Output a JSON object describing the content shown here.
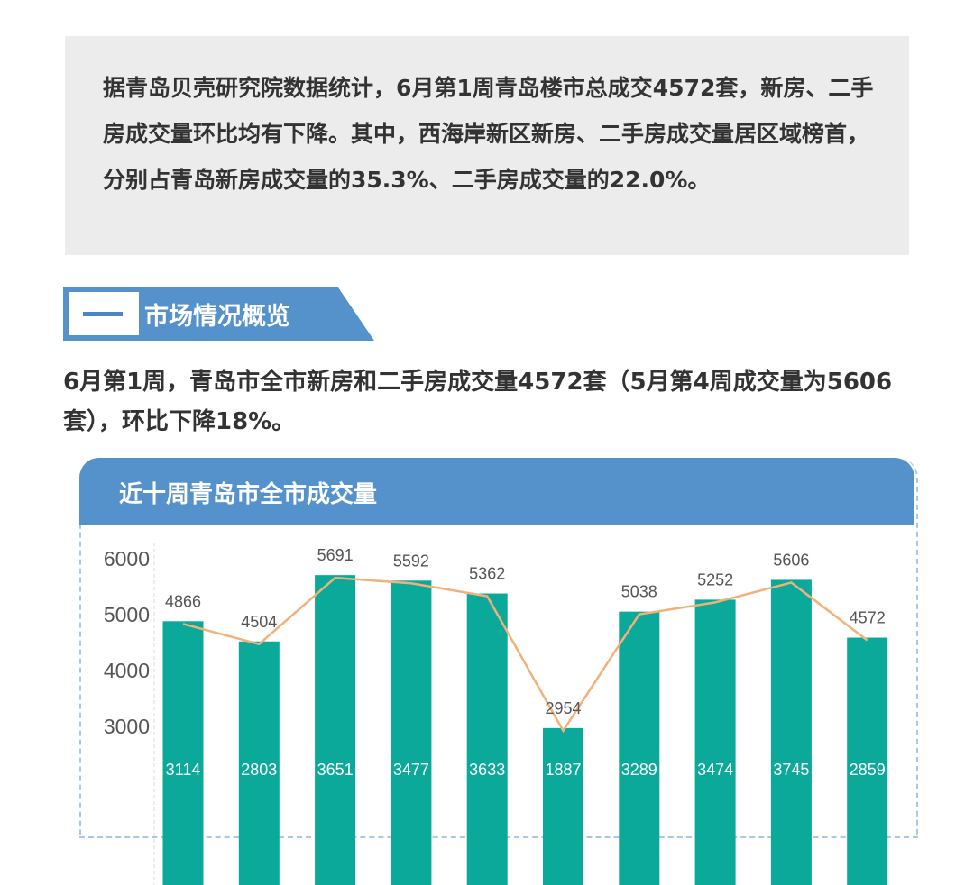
{
  "summary": "据青岛贝壳研究院数据统计，6月第1周青岛楼市总成交4572套，新房、二手房成交量环比均有下降。其中，西海岸新区新房、二手房成交量居区域榜首，分别占青岛新房成交量的35.3%、二手房成交量的22.0%。",
  "section": {
    "number": "一",
    "title": "市场情况概览"
  },
  "intro": "6月第1周，青岛市全市新房和二手房成交量4572套（5月第4周成交量为5606套），环比下降18%。",
  "colors": {
    "accent": "#5592cb",
    "bar": "#0aa99a",
    "line": "#f2b07a"
  },
  "chart_data": {
    "type": "bar",
    "title": "近十周青岛市全市成交量",
    "yticks": [
      3000,
      4000,
      5000,
      6000
    ],
    "ylim": [
      0,
      6000
    ],
    "series": [
      {
        "type": "bar",
        "values": [
          4866,
          4504,
          5691,
          5592,
          5362,
          2954,
          5038,
          5252,
          5606,
          4572
        ]
      },
      {
        "type": "line",
        "values": [
          4866,
          4504,
          5691,
          5592,
          5362,
          2954,
          5038,
          5252,
          5606,
          4572
        ]
      },
      {
        "type": "inner-label",
        "values": [
          3114,
          2803,
          3651,
          3477,
          3633,
          1887,
          3289,
          3474,
          3745,
          2859
        ]
      }
    ]
  }
}
